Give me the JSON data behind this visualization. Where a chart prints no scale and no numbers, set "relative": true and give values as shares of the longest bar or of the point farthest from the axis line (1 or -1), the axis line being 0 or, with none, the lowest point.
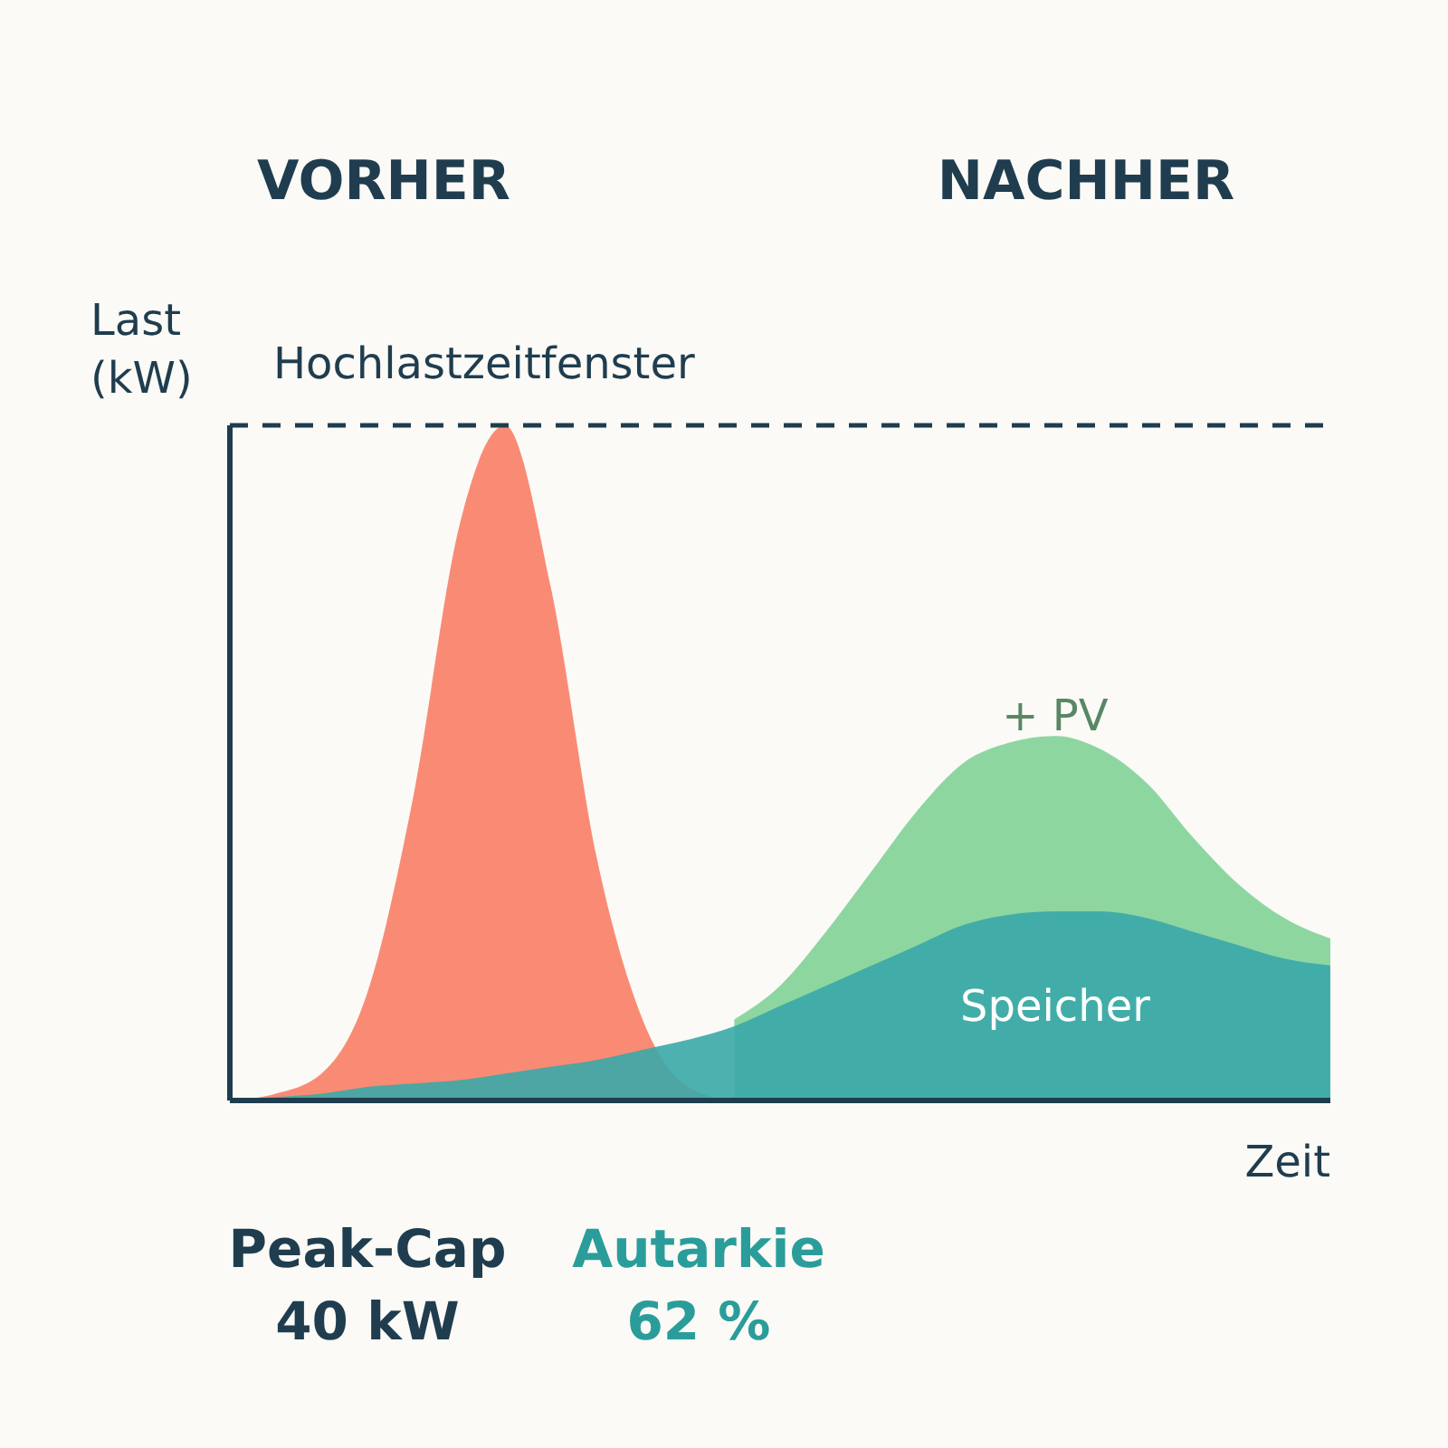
{
  "chart_data": {
    "type": "area",
    "relative": true,
    "xlabel": "Zeit",
    "ylabel": "Last (kW)",
    "categories": [
      null,
      null,
      null,
      null,
      null,
      null,
      null,
      null,
      null,
      null,
      null,
      null,
      null,
      null,
      null,
      null,
      null,
      null,
      null,
      null,
      null,
      null,
      null,
      null,
      null
    ],
    "series": [
      {
        "name": "+ PV",
        "color": "#8ed6a0",
        "values": [
          null,
          null,
          null,
          null,
          null,
          null,
          null,
          null,
          null,
          null,
          null,
          0.12,
          0.17,
          0.25,
          0.34,
          0.43,
          0.5,
          0.53,
          0.54,
          0.52,
          0.47,
          0.39,
          0.32,
          0.27,
          0.24
        ]
      },
      {
        "color": "#f98b75",
        "values": [
          0,
          0.01,
          0.04,
          0.16,
          0.45,
          0.85,
          1,
          0.76,
          0.36,
          0.12,
          0.02,
          0,
          0,
          0,
          0,
          0,
          0,
          0,
          0,
          0,
          0,
          0,
          0,
          0,
          0
        ]
      },
      {
        "name": "Speicher",
        "color": "#3aa8a8",
        "values": [
          0,
          0.005,
          0.01,
          0.02,
          0.025,
          0.03,
          0.04,
          0.05,
          0.06,
          0.075,
          0.09,
          0.11,
          0.14,
          0.17,
          0.2,
          0.23,
          0.26,
          0.275,
          0.28,
          0.28,
          0.27,
          0.25,
          0.23,
          0.21,
          0.2
        ]
      }
    ],
    "ref_lines": [
      {
        "axis": "y",
        "value": 1,
        "label": "Hochlastzeitfenster",
        "line_style": "dashed",
        "color": "#1f3d4f"
      }
    ],
    "annotations": [
      "VORHER",
      "NACHHER",
      "Peak-Cap\n40 kW",
      "Autarkie\n62 %"
    ],
    "marker": "none"
  }
}
